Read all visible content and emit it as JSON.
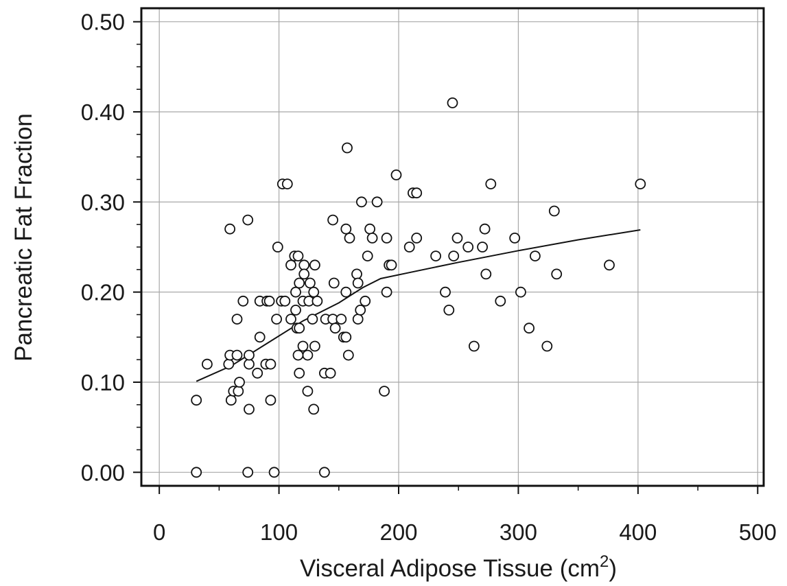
{
  "chart_data": {
    "type": "scatter",
    "title": "",
    "xlabel": "Visceral Adipose Tissue (cm",
    "xlabel_superscript": "2",
    "xlabel_suffix": ")",
    "ylabel": "Pancreatic Fat Fraction",
    "xlim": [
      -15,
      505
    ],
    "ylim": [
      -0.015,
      0.515
    ],
    "grid": true,
    "legend": "none",
    "x_ticks": [
      0,
      100,
      200,
      300,
      400,
      500
    ],
    "x_tick_labels": [
      "0",
      "100",
      "200",
      "300",
      "400",
      "500"
    ],
    "y_ticks": [
      0,
      0.1,
      0.2,
      0.3,
      0.4,
      0.5
    ],
    "y_tick_labels": [
      "0.00",
      "0.10",
      "0.20",
      "0.30",
      "0.40",
      "0.50"
    ],
    "series": [
      {
        "marker": "open-circle",
        "points": [
          [
            31,
            0.0
          ],
          [
            74,
            0.0
          ],
          [
            96,
            0.0
          ],
          [
            138,
            0.0
          ],
          [
            31,
            0.08
          ],
          [
            60,
            0.08
          ],
          [
            75,
            0.07
          ],
          [
            93,
            0.08
          ],
          [
            129,
            0.07
          ],
          [
            188,
            0.09
          ],
          [
            62,
            0.09
          ],
          [
            66,
            0.09
          ],
          [
            67,
            0.1
          ],
          [
            75,
            0.12
          ],
          [
            82,
            0.11
          ],
          [
            89,
            0.12
          ],
          [
            93,
            0.12
          ],
          [
            40,
            0.12
          ],
          [
            58,
            0.12
          ],
          [
            59,
            0.13
          ],
          [
            65,
            0.13
          ],
          [
            75,
            0.13
          ],
          [
            117,
            0.11
          ],
          [
            124,
            0.09
          ],
          [
            138,
            0.11
          ],
          [
            143,
            0.11
          ],
          [
            124,
            0.13
          ],
          [
            116,
            0.13
          ],
          [
            120,
            0.14
          ],
          [
            130,
            0.14
          ],
          [
            158,
            0.13
          ],
          [
            65,
            0.17
          ],
          [
            84,
            0.15
          ],
          [
            70,
            0.19
          ],
          [
            84,
            0.19
          ],
          [
            90,
            0.19
          ],
          [
            92,
            0.19
          ],
          [
            98,
            0.17
          ],
          [
            102,
            0.19
          ],
          [
            105,
            0.19
          ],
          [
            110,
            0.17
          ],
          [
            114,
            0.18
          ],
          [
            115,
            0.16
          ],
          [
            117,
            0.16
          ],
          [
            114,
            0.2
          ],
          [
            120,
            0.19
          ],
          [
            125,
            0.19
          ],
          [
            128,
            0.17
          ],
          [
            129,
            0.2
          ],
          [
            132,
            0.19
          ],
          [
            139,
            0.17
          ],
          [
            145,
            0.17
          ],
          [
            147,
            0.16
          ],
          [
            152,
            0.17
          ],
          [
            154,
            0.15
          ],
          [
            156,
            0.15
          ],
          [
            156,
            0.2
          ],
          [
            166,
            0.17
          ],
          [
            168,
            0.18
          ],
          [
            172,
            0.19
          ],
          [
            110,
            0.23
          ],
          [
            113,
            0.24
          ],
          [
            116,
            0.24
          ],
          [
            117,
            0.21
          ],
          [
            121,
            0.23
          ],
          [
            121,
            0.22
          ],
          [
            126,
            0.21
          ],
          [
            130,
            0.23
          ],
          [
            146,
            0.21
          ],
          [
            165,
            0.22
          ],
          [
            166,
            0.21
          ],
          [
            174,
            0.24
          ],
          [
            190,
            0.2
          ],
          [
            190,
            0.26
          ],
          [
            192,
            0.23
          ],
          [
            194,
            0.23
          ],
          [
            59,
            0.27
          ],
          [
            74,
            0.28
          ],
          [
            99,
            0.25
          ],
          [
            103,
            0.32
          ],
          [
            107,
            0.32
          ],
          [
            145,
            0.28
          ],
          [
            156,
            0.27
          ],
          [
            159,
            0.26
          ],
          [
            169,
            0.3
          ],
          [
            176,
            0.27
          ],
          [
            178,
            0.26
          ],
          [
            182,
            0.3
          ],
          [
            157,
            0.36
          ],
          [
            198,
            0.33
          ],
          [
            209,
            0.25
          ],
          [
            212,
            0.31
          ],
          [
            215,
            0.31
          ],
          [
            215,
            0.26
          ],
          [
            231,
            0.24
          ],
          [
            239,
            0.2
          ],
          [
            242,
            0.18
          ],
          [
            246,
            0.24
          ],
          [
            249,
            0.26
          ],
          [
            258,
            0.25
          ],
          [
            263,
            0.14
          ],
          [
            270,
            0.25
          ],
          [
            272,
            0.27
          ],
          [
            273,
            0.22
          ],
          [
            277,
            0.32
          ],
          [
            285,
            0.19
          ],
          [
            245,
            0.41
          ],
          [
            297,
            0.26
          ],
          [
            302,
            0.2
          ],
          [
            309,
            0.16
          ],
          [
            314,
            0.24
          ],
          [
            324,
            0.14
          ],
          [
            330,
            0.29
          ],
          [
            332,
            0.22
          ],
          [
            376,
            0.23
          ],
          [
            402,
            0.32
          ]
        ]
      },
      {
        "marker": "line",
        "points": [
          [
            31,
            0.101
          ],
          [
            60,
            0.118
          ],
          [
            90,
            0.143
          ],
          [
            120,
            0.168
          ],
          [
            150,
            0.188
          ],
          [
            170,
            0.205
          ],
          [
            185,
            0.215
          ],
          [
            210,
            0.222
          ],
          [
            250,
            0.233
          ],
          [
            300,
            0.246
          ],
          [
            350,
            0.258
          ],
          [
            402,
            0.269
          ]
        ]
      }
    ]
  }
}
